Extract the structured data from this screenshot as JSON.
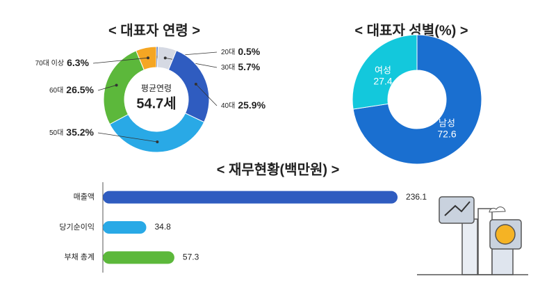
{
  "chart_data": [
    {
      "type": "donut",
      "title": "< 대표자 연령 >",
      "categories": [
        "20대",
        "30대",
        "40대",
        "50대",
        "60대",
        "70대 이상"
      ],
      "values": [
        0.5,
        5.7,
        25.9,
        35.2,
        26.5,
        6.3
      ],
      "value_labels": [
        "0.5%",
        "5.7%",
        "25.9%",
        "35.2%",
        "26.5%",
        "6.3%"
      ],
      "colors": [
        "#1f4fb5",
        "#d5d9e3",
        "#2f5cc0",
        "#29a9e6",
        "#5cb83b",
        "#f5a623"
      ],
      "center_text": [
        "평균연령",
        "54.7세"
      ]
    },
    {
      "type": "donut",
      "title": "< 대표자 성별(%) >",
      "categories": [
        "남성",
        "여성"
      ],
      "values": [
        72.6,
        27.4
      ],
      "colors": [
        "#1a6fd0",
        "#13c8dc"
      ]
    },
    {
      "type": "hbar",
      "title": "< 재무현황(백만원) >",
      "categories": [
        "매출액",
        "당기순이익",
        "부채 총계"
      ],
      "values": [
        236.1,
        34.8,
        57.3
      ],
      "colors": [
        "#2f5cc0",
        "#29a9e6",
        "#5cb83b"
      ],
      "xlim": [
        0,
        250
      ]
    }
  ]
}
